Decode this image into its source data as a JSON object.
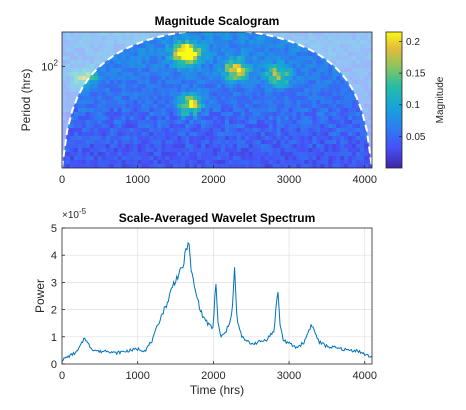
{
  "chart_data": [
    {
      "type": "heatmap",
      "title": "Magnitude Scalogram",
      "xlabel": "",
      "ylabel": "Period (hrs)",
      "xlim": [
        0,
        4096
      ],
      "xticks": [
        0,
        1000,
        2000,
        3000,
        4000
      ],
      "xtick_labels": [
        "0",
        "1000",
        "2000",
        "3000",
        "4000"
      ],
      "yscale": "log",
      "ylim": [
        4,
        300
      ],
      "yticks": [
        100
      ],
      "ytick_labels": [
        "10",
        "2"
      ],
      "colormap": "parula",
      "colorbar": {
        "label": "Magnitude",
        "range": [
          0,
          0.215
        ],
        "ticks": [
          0.05,
          0.1,
          0.15,
          0.2
        ],
        "tick_labels": [
          "0.05",
          "0.1",
          "0.15",
          "0.2"
        ],
        "placement": "right"
      },
      "cone_of_influence": {
        "style": "dashed",
        "color": "#ffffff"
      },
      "hotspots": [
        {
          "x": 1650,
          "period": 150,
          "magnitude": 0.21
        },
        {
          "x": 2300,
          "period": 90,
          "magnitude": 0.12
        },
        {
          "x": 2850,
          "period": 75,
          "magnitude": 0.1
        },
        {
          "x": 300,
          "period": 70,
          "magnitude": 0.09
        },
        {
          "x": 1700,
          "period": 30,
          "magnitude": 0.13
        }
      ]
    },
    {
      "type": "line",
      "title": "Scale-Averaged Wavelet Spectrum",
      "xlabel": "Time (hrs)",
      "ylabel": "Power",
      "xlim": [
        0,
        4096
      ],
      "ylim": [
        0,
        5
      ],
      "xticks": [
        0,
        1000,
        2000,
        3000,
        4000
      ],
      "xtick_labels": [
        "0",
        "1000",
        "2000",
        "3000",
        "4000"
      ],
      "yticks": [
        0,
        1,
        2,
        3,
        4,
        5
      ],
      "ytick_labels": [
        "0",
        "1",
        "2",
        "3",
        "4",
        "5"
      ],
      "y_exponent_label": "×10",
      "y_exponent_value": "-5",
      "grid": true,
      "series": [
        {
          "color": "#0072bd",
          "x": [
            0,
            100,
            200,
            260,
            300,
            340,
            400,
            500,
            600,
            700,
            800,
            900,
            1000,
            1100,
            1150,
            1200,
            1250,
            1300,
            1350,
            1400,
            1450,
            1500,
            1550,
            1600,
            1640,
            1670,
            1700,
            1750,
            1800,
            1850,
            1900,
            1950,
            2000,
            2030,
            2060,
            2100,
            2150,
            2200,
            2250,
            2280,
            2310,
            2350,
            2400,
            2500,
            2600,
            2700,
            2800,
            2850,
            2880,
            2920,
            3000,
            3100,
            3200,
            3270,
            3300,
            3350,
            3400,
            3500,
            3600,
            3700,
            3800,
            3900,
            4000,
            4096
          ],
          "y": [
            0.15,
            0.3,
            0.45,
            0.75,
            1.0,
            0.75,
            0.55,
            0.45,
            0.5,
            0.4,
            0.45,
            0.5,
            0.55,
            0.5,
            0.7,
            0.9,
            1.3,
            1.7,
            2.0,
            2.3,
            2.8,
            3.1,
            3.3,
            3.6,
            4.2,
            4.6,
            3.6,
            2.8,
            2.3,
            1.8,
            1.6,
            1.4,
            1.3,
            3.2,
            1.5,
            1.0,
            1.1,
            1.4,
            2.0,
            3.5,
            1.7,
            1.2,
            0.9,
            0.75,
            0.8,
            0.9,
            1.2,
            2.75,
            1.5,
            0.9,
            0.75,
            0.6,
            0.8,
            1.3,
            1.45,
            1.1,
            0.8,
            0.65,
            0.6,
            0.55,
            0.5,
            0.5,
            0.35,
            0.25
          ]
        }
      ]
    }
  ]
}
